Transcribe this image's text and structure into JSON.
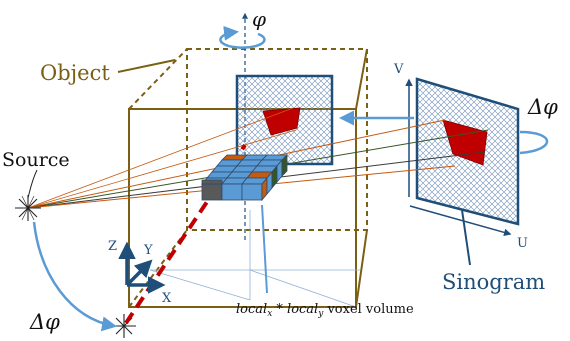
{
  "labels": {
    "object": "Object",
    "source": "Source",
    "sinogram": "Sinogram",
    "phi_top": "φ",
    "delta_phi_right": "Δφ",
    "delta_phi_left": "Δφ",
    "axis_x": "X",
    "axis_y": "Y",
    "axis_z": "Z",
    "axis_u": "U",
    "axis_v": "V",
    "voxel_local": "local",
    "voxel_sub_x": "x",
    "voxel_mult": " * ",
    "voxel_sub_y": "y",
    "voxel_volume": " voxel volume"
  },
  "colors": {
    "object_box": "#7a5f14",
    "detector": "#1f4e79",
    "rotation_arrow": "#5b9bd5",
    "ray_orange": "#c55a11",
    "ray_green": "#375623",
    "ray_dark": "#3a3a3a",
    "projection_red": "#c00000",
    "voxel_blue": "#5b9bd5",
    "voxel_orange": "#c55a11",
    "voxel_gray": "#595959",
    "trajectory": "#c00000"
  }
}
